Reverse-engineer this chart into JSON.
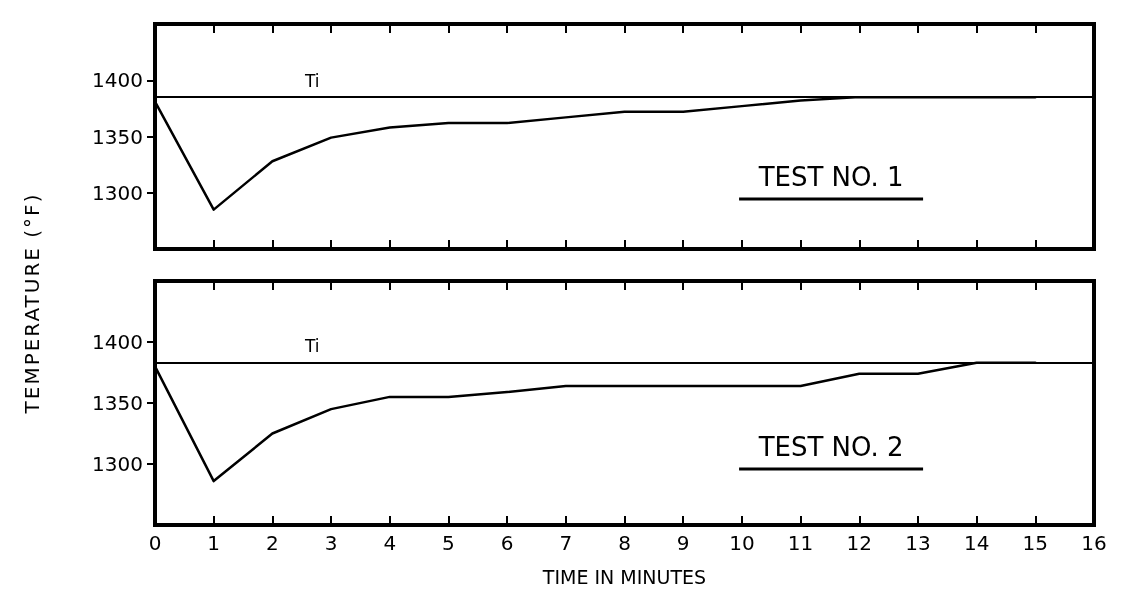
{
  "chart_data": [
    {
      "type": "line",
      "ylabel": "TEMPERATURE (°F)",
      "x": [
        0,
        1,
        2,
        3,
        4,
        5,
        6,
        7,
        8,
        9,
        10,
        11,
        12,
        15
      ],
      "values": [
        1381,
        1285,
        1328,
        1349,
        1358,
        1362,
        1362,
        1367,
        1372,
        1372,
        1377,
        1382,
        1385,
        1385
      ],
      "color": "#000000",
      "xlim": [
        0,
        16
      ],
      "xticks": [
        0,
        1,
        2,
        3,
        4,
        5,
        6,
        7,
        8,
        9,
        10,
        11,
        12,
        13,
        14,
        15,
        16
      ],
      "ylim": [
        1250,
        1450
      ],
      "yticks": [
        1300,
        1350,
        1400
      ],
      "tick_labels": "y",
      "grid": false,
      "marker": "none",
      "line_style": "solid",
      "ref_lines": [
        {
          "axis": "y",
          "value": 1385,
          "label": "Ti"
        }
      ],
      "annotations": [
        "TEST NO. 1"
      ]
    },
    {
      "type": "line",
      "xlabel": "TIME IN MINUTES",
      "x": [
        0,
        1,
        2,
        3,
        4,
        5,
        6,
        7,
        8,
        9,
        10,
        11,
        12,
        13,
        14,
        15
      ],
      "values": [
        1380,
        1286,
        1325,
        1345,
        1355,
        1355,
        1359,
        1364,
        1364,
        1364,
        1364,
        1364,
        1374,
        1374,
        1383,
        1383
      ],
      "color": "#000000",
      "xlim": [
        0,
        16
      ],
      "xticks": [
        0,
        1,
        2,
        3,
        4,
        5,
        6,
        7,
        8,
        9,
        10,
        11,
        12,
        13,
        14,
        15,
        16
      ],
      "ylim": [
        1250,
        1450
      ],
      "yticks": [
        1300,
        1350,
        1400
      ],
      "grid": false,
      "marker": "none",
      "line_style": "solid",
      "ref_lines": [
        {
          "axis": "y",
          "value": 1383,
          "label": "Ti"
        }
      ],
      "annotations": [
        "TEST NO. 2"
      ]
    }
  ]
}
